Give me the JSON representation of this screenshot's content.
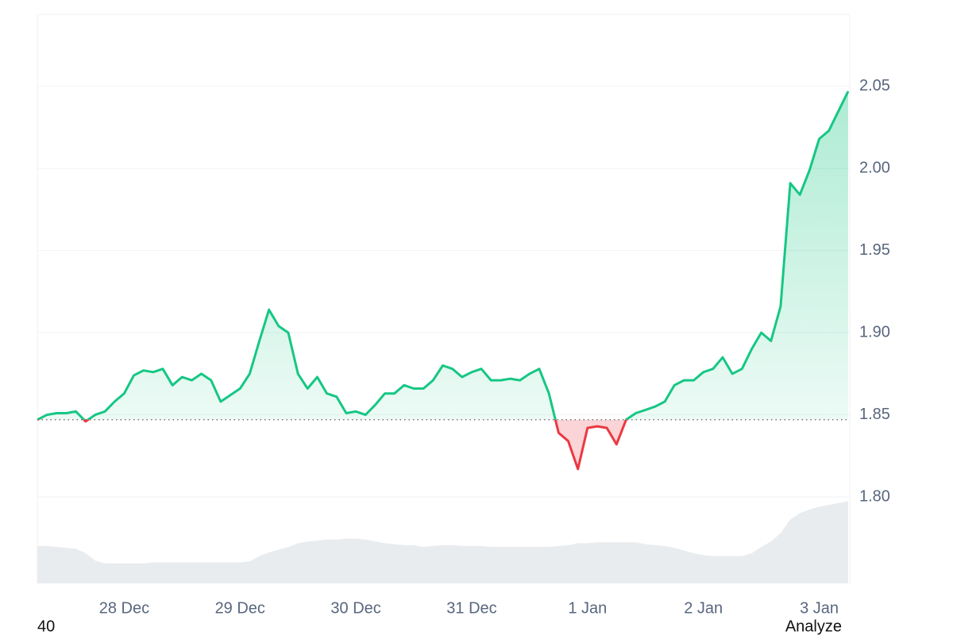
{
  "chart_data": {
    "type": "line",
    "x": [
      6,
      8,
      10,
      12,
      14,
      16,
      18,
      20,
      22,
      24,
      26,
      28,
      30,
      32,
      34,
      36,
      38,
      40,
      42,
      44,
      46,
      48,
      50,
      52,
      54,
      56,
      58,
      60,
      62,
      64,
      66,
      68,
      70,
      72,
      74,
      76,
      78,
      80,
      82,
      84,
      86,
      88,
      90,
      92,
      94,
      96,
      98,
      100,
      102,
      104,
      106,
      108,
      110,
      112,
      114,
      116,
      118,
      120,
      122,
      124,
      126,
      128,
      130,
      132,
      134,
      136,
      138,
      140,
      142,
      144,
      146,
      148,
      150,
      152,
      154,
      156,
      158,
      160,
      162,
      164,
      166,
      168,
      170,
      172,
      174
    ],
    "series": [
      {
        "color": "#16c784",
        "negative_color": "#ea3943",
        "values": [
          1.847,
          1.85,
          1.851,
          1.851,
          1.852,
          1.846,
          1.85,
          1.852,
          1.858,
          1.863,
          1.874,
          1.877,
          1.876,
          1.878,
          1.868,
          1.873,
          1.871,
          1.875,
          1.871,
          1.858,
          1.862,
          1.866,
          1.875,
          1.895,
          1.914,
          1.904,
          1.9,
          1.875,
          1.866,
          1.873,
          1.863,
          1.861,
          1.851,
          1.852,
          1.85,
          1.856,
          1.863,
          1.863,
          1.868,
          1.866,
          1.866,
          1.871,
          1.88,
          1.878,
          1.873,
          1.876,
          1.878,
          1.871,
          1.871,
          1.872,
          1.871,
          1.875,
          1.878,
          1.863,
          1.839,
          1.834,
          1.817,
          1.842,
          1.843,
          1.842,
          1.832,
          1.847,
          1.851,
          1.853,
          1.855,
          1.858,
          1.868,
          1.871,
          1.871,
          1.876,
          1.878,
          1.885,
          1.875,
          1.878,
          1.89,
          1.9,
          1.895,
          1.916,
          1.991,
          1.984,
          1.999,
          2.018,
          2.023,
          2.035,
          2.047
        ]
      },
      {
        "color": "#e9ecef",
        "axis": "y2",
        "values": [
          41,
          41,
          40,
          39,
          38,
          33,
          25,
          22,
          22,
          22,
          22,
          22,
          23,
          23,
          23,
          23,
          23,
          23,
          23,
          23,
          23,
          23,
          24,
          30,
          34,
          37,
          40,
          44,
          46,
          47,
          48,
          48,
          49,
          49,
          48,
          46,
          44,
          43,
          42,
          42,
          40,
          41,
          42,
          42,
          41,
          41,
          41,
          40,
          40,
          40,
          40,
          40,
          40,
          40,
          41,
          42,
          44,
          44,
          45,
          45,
          45,
          45,
          45,
          43,
          42,
          41,
          39,
          36,
          33,
          31,
          30,
          30,
          30,
          30,
          33,
          40,
          46,
          55,
          70,
          77,
          81,
          84,
          86,
          88,
          90
        ]
      }
    ],
    "xlim": [
      6,
      174
    ],
    "xticks": [
      {
        "value": 24,
        "label": "28 Dec"
      },
      {
        "value": 48,
        "label": "29 Dec"
      },
      {
        "value": 72,
        "label": "30 Dec"
      },
      {
        "value": 96,
        "label": "31 Dec"
      },
      {
        "value": 120,
        "label": "1 Jan"
      },
      {
        "value": 144,
        "label": "2 Jan"
      },
      {
        "value": 168,
        "label": "3 Jan"
      }
    ],
    "ylim": [
      1.75,
      2.09
    ],
    "yticks": [
      {
        "value": 1.8,
        "label": "1.80"
      },
      1.85,
      {
        "value": 1.9,
        "label": "1.90"
      },
      1.95,
      {
        "value": 2.0,
        "label": "2.00"
      },
      2.05
    ],
    "y2lim": [
      0,
      100
    ],
    "grid": true
  },
  "footer_left": "40",
  "footer_button": "Analyze"
}
